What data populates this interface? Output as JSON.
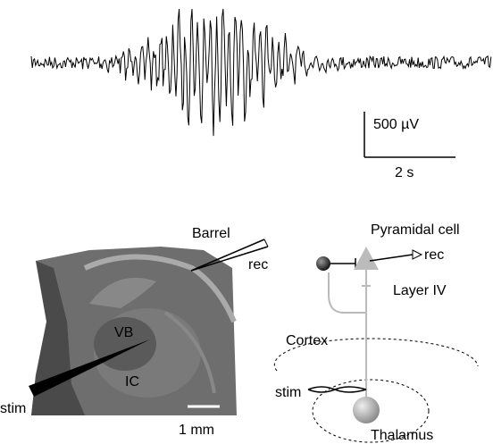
{
  "trace": {
    "scale_voltage": "500 µV",
    "scale_time": "2 s"
  },
  "slice": {
    "barrel": "Barrel",
    "rec": "rec",
    "vb": "VB",
    "ic": "IC",
    "stim": "stim",
    "scale": "1 mm"
  },
  "schematic": {
    "cell": "Pyramidal cell",
    "rec": "rec",
    "layer": "Layer IV",
    "cortex": "Cortex",
    "stim": "stim",
    "thalamus": "Thalamus"
  }
}
